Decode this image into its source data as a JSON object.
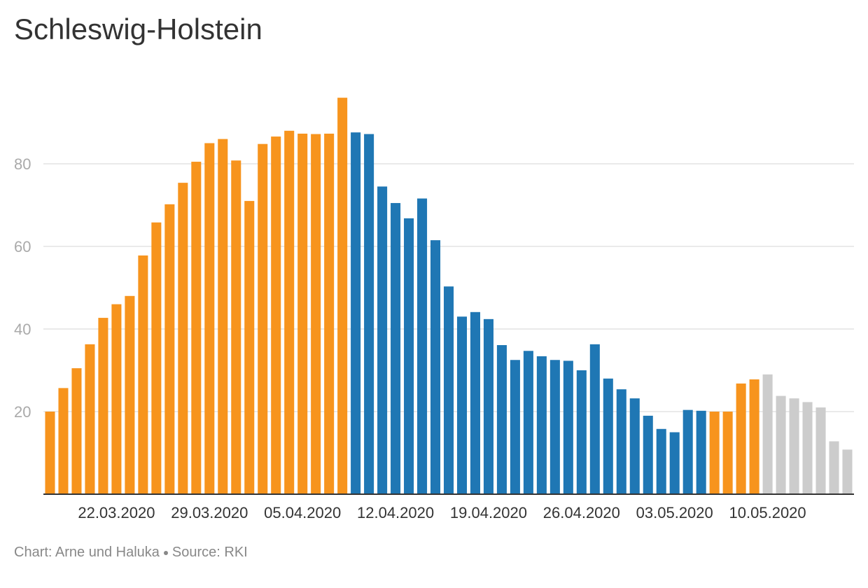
{
  "chart_data": {
    "type": "bar",
    "title": "Schleswig-Holstein",
    "xlabel": "",
    "ylabel": "",
    "ylim": [
      0,
      100
    ],
    "yticks": [
      20,
      40,
      60,
      80
    ],
    "grid": true,
    "x_tick_labels": [
      "22.03.2020",
      "29.03.2020",
      "05.04.2020",
      "12.04.2020",
      "19.04.2020",
      "26.04.2020",
      "03.05.2020",
      "10.05.2020"
    ],
    "x_tick_bar_index": [
      5,
      12,
      19,
      26,
      33,
      40,
      47,
      54
    ],
    "colors": {
      "orange": "#f7941d",
      "blue": "#1f77b4",
      "gray": "#cccccc"
    },
    "values": [
      20,
      25.7,
      30.5,
      36.3,
      42.7,
      46,
      48,
      57.8,
      65.8,
      70.2,
      75.4,
      80.5,
      85,
      86,
      80.8,
      71,
      84.8,
      86.6,
      88,
      87.3,
      87.2,
      87.3,
      96,
      87.6,
      87.2,
      74.5,
      70.5,
      66.8,
      71.6,
      61.5,
      50.3,
      43,
      44.1,
      42.4,
      36.1,
      32.5,
      34.7,
      33.4,
      32.5,
      32.3,
      30,
      36.3,
      28,
      25.4,
      23.2,
      19,
      15.8,
      15,
      20.4,
      20.2,
      20,
      20,
      26.8,
      27.8,
      29,
      23.8,
      23.2,
      22.3,
      21,
      12.8,
      10.8
    ],
    "bar_colors": [
      "orange",
      "orange",
      "orange",
      "orange",
      "orange",
      "orange",
      "orange",
      "orange",
      "orange",
      "orange",
      "orange",
      "orange",
      "orange",
      "orange",
      "orange",
      "orange",
      "orange",
      "orange",
      "orange",
      "orange",
      "orange",
      "orange",
      "orange",
      "blue",
      "blue",
      "blue",
      "blue",
      "blue",
      "blue",
      "blue",
      "blue",
      "blue",
      "blue",
      "blue",
      "blue",
      "blue",
      "blue",
      "blue",
      "blue",
      "blue",
      "blue",
      "blue",
      "blue",
      "blue",
      "blue",
      "blue",
      "blue",
      "blue",
      "blue",
      "blue",
      "orange",
      "orange",
      "orange",
      "orange",
      "gray",
      "gray",
      "gray",
      "gray",
      "gray",
      "gray",
      "gray"
    ]
  },
  "footer": {
    "credit": "Chart: Arne und Haluka",
    "source": "Source: RKI"
  }
}
